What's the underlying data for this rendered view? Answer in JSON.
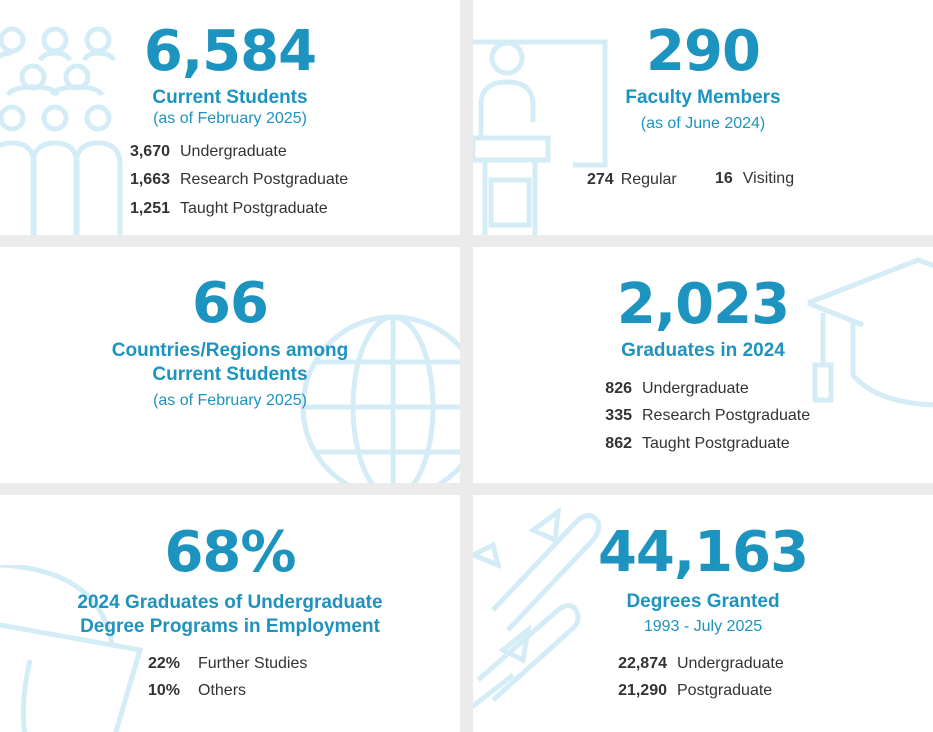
{
  "colors": {
    "accent": "#1d93bf",
    "icon": "#d3ecf6",
    "text": "#333333",
    "gap": "#ebebeb"
  },
  "students": {
    "value": "6,584",
    "title": "Current Students",
    "note": "(as of February 2025)",
    "breakdown": [
      {
        "num": "3,670",
        "label": "Undergraduate"
      },
      {
        "num": "1,663",
        "label": "Research Postgraduate"
      },
      {
        "num": "1,251",
        "label": "Taught Postgraduate"
      }
    ],
    "icon": "people-group-icon"
  },
  "faculty": {
    "value": "290",
    "title": "Faculty Members",
    "note": "(as of June 2024)",
    "breakdown": [
      {
        "num": "274",
        "label": "Regular"
      },
      {
        "num": "16",
        "label": "Visiting"
      }
    ],
    "icon": "lecturer-podium-icon"
  },
  "countries": {
    "value": "66",
    "title_line1": "Countries/Regions among",
    "title_line2": "Current Students",
    "note": "(as of February 2025)",
    "icon": "globe-icon"
  },
  "graduates": {
    "value": "2,023",
    "title": "Graduates in 2024",
    "breakdown": [
      {
        "num": "826",
        "label": "Undergraduate"
      },
      {
        "num": "335",
        "label": "Research Postgraduate"
      },
      {
        "num": "862",
        "label": "Taught Postgraduate"
      }
    ],
    "icon": "graduation-cap-icon"
  },
  "employment": {
    "value": "68%",
    "title_line1": "2024 Graduates of Undergraduate",
    "title_line2": "Degree Programs in Employment",
    "breakdown": [
      {
        "num": "22%",
        "label": "Further Studies"
      },
      {
        "num": "10%",
        "label": "Others"
      }
    ],
    "icon": "pie-chart-icon"
  },
  "degrees": {
    "value": "44,163",
    "title": "Degrees Granted",
    "note": "1993 - July 2025",
    "breakdown": [
      {
        "num": "22,874",
        "label": "Undergraduate"
      },
      {
        "num": "21,290",
        "label": "Postgraduate"
      }
    ],
    "icon": "diploma-scroll-icon"
  }
}
